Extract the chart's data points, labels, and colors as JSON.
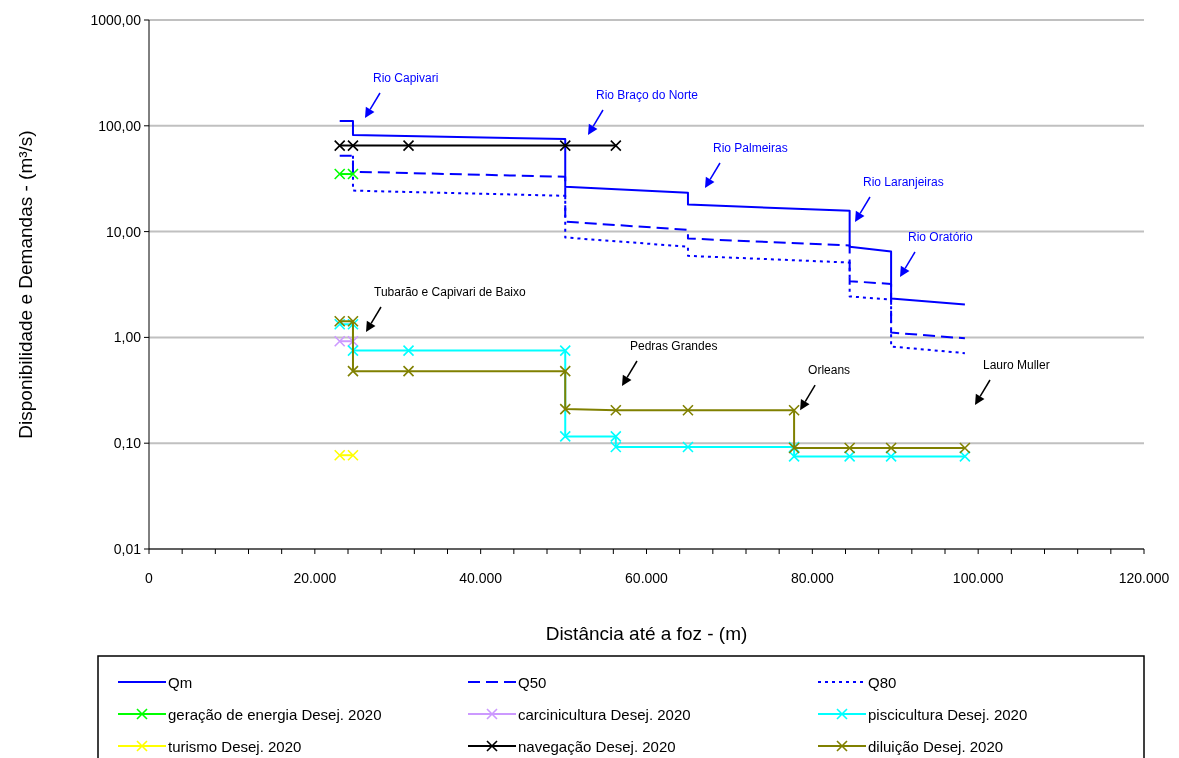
{
  "chart_data": {
    "type": "line",
    "xlabel": "Distância até a foz - (m)",
    "ylabel": "Disponibilidade e Demandas - (m³/s)",
    "log": "y",
    "grid": "y",
    "legend": "bottom",
    "xlim": [
      0,
      120000
    ],
    "xticks": [
      0,
      {
        "value": 4000,
        "label": null
      },
      {
        "value": 8000,
        "label": null
      },
      {
        "value": 12000,
        "label": null
      },
      {
        "value": 16000,
        "label": null
      },
      {
        "value": 20000,
        "label": "20.000"
      },
      {
        "value": 24000,
        "label": null
      },
      {
        "value": 28000,
        "label": null
      },
      {
        "value": 32000,
        "label": null
      },
      {
        "value": 36000,
        "label": null
      },
      {
        "value": 40000,
        "label": "40.000"
      },
      {
        "value": 44000,
        "label": null
      },
      {
        "value": 48000,
        "label": null
      },
      {
        "value": 52000,
        "label": null
      },
      {
        "value": 56000,
        "label": null
      },
      {
        "value": 60000,
        "label": "60.000"
      },
      {
        "value": 64000,
        "label": null
      },
      {
        "value": 68000,
        "label": null
      },
      {
        "value": 72000,
        "label": null
      },
      {
        "value": 76000,
        "label": null
      },
      {
        "value": 80000,
        "label": "80.000"
      },
      {
        "value": 84000,
        "label": null
      },
      {
        "value": 88000,
        "label": null
      },
      {
        "value": 92000,
        "label": null
      },
      {
        "value": 96000,
        "label": null
      },
      {
        "value": 100000,
        "label": "100.000"
      },
      {
        "value": 104000,
        "label": null
      },
      {
        "value": 108000,
        "label": null
      },
      {
        "value": 112000,
        "label": null
      },
      {
        "value": 116000,
        "label": null
      },
      {
        "value": 120000,
        "label": "120.000"
      }
    ],
    "ylim": [
      0.01,
      1000
    ],
    "yticks": [
      {
        "value": 0.01,
        "label": "0,01"
      },
      {
        "value": 0.1,
        "label": "0,10"
      },
      {
        "value": 1,
        "label": "1,00"
      },
      {
        "value": 10,
        "label": "10,00"
      },
      {
        "value": 100,
        "label": "100,00"
      },
      {
        "value": 1000,
        "label": "1000,00"
      }
    ],
    "series": [
      {
        "name": "Qm",
        "color": "#0000ff",
        "line_style": "solid",
        "marker": "none",
        "x": [
          23000,
          24600,
          24600,
          50200,
          50200,
          65000,
          65000,
          84500,
          84500,
          89500,
          89500,
          98400
        ],
        "values": [
          111,
          111,
          82,
          75,
          26.6,
          23.3,
          18,
          15.7,
          7.2,
          6.5,
          2.33,
          2.05
        ]
      },
      {
        "name": "Q50",
        "color": "#0000ff",
        "line_style": "dashed",
        "marker": "none",
        "x": [
          23000,
          24600,
          24600,
          50200,
          50200,
          65000,
          65000,
          84500,
          84500,
          89500,
          89500,
          98400
        ],
        "values": [
          52,
          52,
          36.8,
          33,
          12.4,
          10.4,
          8.6,
          7.4,
          3.4,
          3.2,
          1.11,
          0.98
        ]
      },
      {
        "name": "Q80",
        "color": "#0000ff",
        "line_style": "dotted",
        "marker": "none",
        "x": [
          24600,
          24600,
          50200,
          50200,
          65000,
          65000,
          84500,
          84500,
          89500,
          89500,
          98400
        ],
        "values": [
          52,
          24.4,
          21.8,
          8.8,
          7.2,
          5.9,
          5.1,
          2.44,
          2.28,
          0.82,
          0.71
        ]
      },
      {
        "name": "geração de energia Desej. 2020",
        "color": "#00ff00",
        "line_style": "solid",
        "marker": "cross",
        "x": [
          23000,
          24600
        ],
        "values": [
          35,
          35
        ]
      },
      {
        "name": "carcinicultura Desej. 2020",
        "color": "#cc99ff",
        "line_style": "solid",
        "marker": "cross",
        "x": [
          23000,
          24600
        ],
        "values": [
          0.92,
          0.92
        ]
      },
      {
        "name": "piscicultura Desej. 2020",
        "color": "#00ffff",
        "line_style": "solid",
        "marker": "cross",
        "x": [
          23000,
          24600,
          24600,
          31300,
          50200,
          50200,
          56300,
          56300,
          65000,
          77800,
          77800,
          84500,
          89500,
          98400
        ],
        "values": [
          1.33,
          1.33,
          0.75,
          0.75,
          0.75,
          0.116,
          0.116,
          0.092,
          0.092,
          0.092,
          0.075,
          0.075,
          0.075,
          0.075
        ]
      },
      {
        "name": "turismo Desej. 2020",
        "color": "#ffff00",
        "line_style": "solid",
        "marker": "cross",
        "x": [
          23000,
          24600
        ],
        "values": [
          0.077,
          0.077
        ]
      },
      {
        "name": "navegação Desej. 2020",
        "color": "#000000",
        "line_style": "solid",
        "marker": "cross",
        "x": [
          23000,
          24600,
          31300,
          50200,
          56300
        ],
        "values": [
          65,
          65,
          65,
          65,
          65
        ]
      },
      {
        "name": "diluição Desej. 2020",
        "color": "#808000",
        "line_style": "solid",
        "marker": "cross",
        "x": [
          23000,
          24600,
          24600,
          31300,
          50200,
          50200,
          56300,
          65000,
          77800,
          77800,
          84500,
          89500,
          98400
        ],
        "values": [
          1.42,
          1.42,
          0.48,
          0.48,
          0.48,
          0.21,
          0.205,
          0.205,
          0.205,
          0.09,
          0.09,
          0.09,
          0.09
        ]
      }
    ],
    "annotations": [
      "Rio Capivari",
      "Rio Braço do Norte",
      "Rio Palmeiras",
      "Rio Laranjeiras",
      "Rio Oratório",
      "Tubarão e Capivari de Baixo",
      "Pedras Grandes",
      {
        "text": "Orleans",
        "x": 77800,
        "y": 0.205
      },
      "Lauro Muller"
    ]
  }
}
